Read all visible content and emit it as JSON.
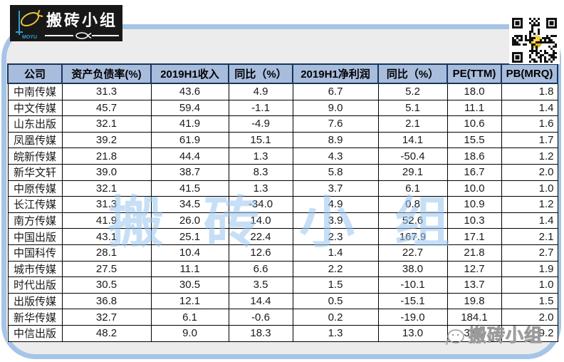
{
  "logo": {
    "brand": "搬砖小组",
    "sub": "MOYU"
  },
  "watermark": {
    "center": "搬砖小组",
    "corner": "搬砖小组"
  },
  "colors": {
    "frame_blue": "#a6c5e6",
    "header_bg": "#a8bcdc",
    "header_border": "#17365d",
    "watermark_blue": "#98c5ee",
    "logo_bg": "#181818",
    "qr_ball_gold": "#f0c01f"
  },
  "chart_data": {
    "type": "table",
    "title": "",
    "columns": [
      "公司",
      "资产负债率(%)",
      "2019H1收入",
      "同比（%）",
      "2019H1净利润",
      "同比（%）",
      "PE(TTM)",
      "PB(MRQ)"
    ],
    "rows": [
      [
        "中南传媒",
        "31.3",
        "43.6",
        "4.9",
        "6.7",
        "5.2",
        "18.0",
        "1.8"
      ],
      [
        "中文传媒",
        "45.7",
        "59.4",
        "-1.1",
        "9.0",
        "5.1",
        "11.1",
        "1.4"
      ],
      [
        "山东出版",
        "32.1",
        "41.9",
        "-4.9",
        "7.6",
        "2.1",
        "10.6",
        "1.6"
      ],
      [
        "凤凰传媒",
        "39.2",
        "61.9",
        "15.1",
        "8.9",
        "14.1",
        "15.5",
        "1.7"
      ],
      [
        "皖新传媒",
        "21.8",
        "44.4",
        "1.3",
        "4.3",
        "-50.4",
        "18.6",
        "1.2"
      ],
      [
        "新华文轩",
        "39.0",
        "38.7",
        "8.3",
        "5.8",
        "29.1",
        "16.7",
        "2.0"
      ],
      [
        "中原传媒",
        "32.1",
        "41.5",
        "1.3",
        "3.7",
        "6.1",
        "10.0",
        "1.0"
      ],
      [
        "长江传媒",
        "31.3",
        "34.5",
        "-34.0",
        "4.9",
        "0.8",
        "10.9",
        "1.2"
      ],
      [
        "南方传媒",
        "41.9",
        "26.0",
        "14.0",
        "3.9",
        "52.6",
        "10.3",
        "1.4"
      ],
      [
        "中国出版",
        "43.1",
        "25.1",
        "22.4",
        "2.3",
        "167.9",
        "17.1",
        "2.1"
      ],
      [
        "中国科传",
        "28.1",
        "10.4",
        "12.6",
        "1.4",
        "22.7",
        "21.8",
        "2.7"
      ],
      [
        "城市传媒",
        "27.5",
        "11.1",
        "6.6",
        "2.2",
        "38.0",
        "12.7",
        "1.9"
      ],
      [
        "时代出版",
        "30.5",
        "30.5",
        "3.5",
        "1.5",
        "-10.1",
        "13.7",
        "1.0"
      ],
      [
        "出版传媒",
        "36.8",
        "12.1",
        "14.4",
        "0.5",
        "-15.1",
        "19.8",
        "1.5"
      ],
      [
        "新华传媒",
        "32.7",
        "6.1",
        "-0.6",
        "0.2",
        "-19.0",
        "184.1",
        "2.0"
      ],
      [
        "中信出版",
        "48.2",
        "9.0",
        "18.3",
        "1.3",
        "13.0",
        "38.9",
        "9.2"
      ]
    ]
  }
}
